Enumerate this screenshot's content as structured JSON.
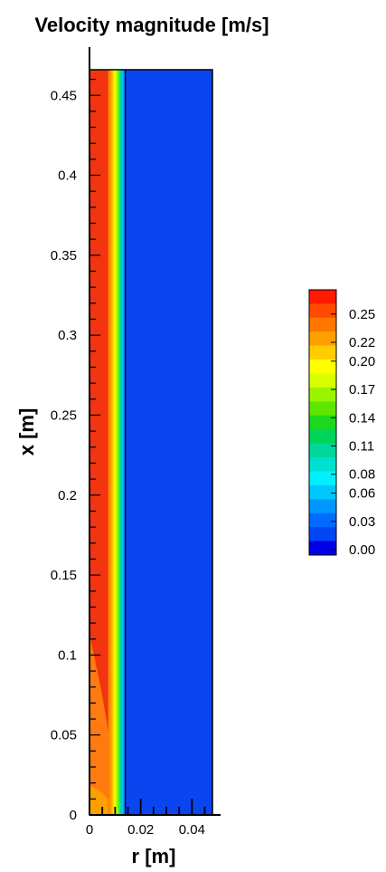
{
  "chart_data": {
    "type": "heatmap",
    "title": "Velocity magnitude [m/s]",
    "xlabel": "r [m]",
    "ylabel": "x [m]",
    "xlim": [
      0,
      0.048
    ],
    "ylim": [
      0,
      0.466
    ],
    "x_ticks": [
      "0",
      "0.02",
      "0.04"
    ],
    "x_tick_values": [
      0,
      0.02,
      0.04
    ],
    "y_ticks": [
      "0",
      "0.05",
      "0.1",
      "0.15",
      "0.2",
      "0.25",
      "0.3",
      "0.35",
      "0.4",
      "0.45"
    ],
    "y_tick_values": [
      0,
      0.05,
      0.1,
      0.15,
      0.2,
      0.25,
      0.3,
      0.35,
      0.4,
      0.45
    ],
    "colorbar": {
      "labels": [
        "0.25",
        "0.22",
        "0.20",
        "0.17",
        "0.14",
        "0.11",
        "0.08",
        "0.06",
        "0.03",
        "0.00"
      ],
      "label_values": [
        0.25,
        0.22,
        0.2,
        0.17,
        0.14,
        0.11,
        0.08,
        0.06,
        0.03,
        0.0
      ],
      "levels": [
        {
          "value": 0.27,
          "color": "#ff1a00"
        },
        {
          "value": 0.26,
          "color": "#ff4a00"
        },
        {
          "value": 0.245,
          "color": "#ff7700"
        },
        {
          "value": 0.23,
          "color": "#ffa000"
        },
        {
          "value": 0.215,
          "color": "#ffcc00"
        },
        {
          "value": 0.2,
          "color": "#ffff00"
        },
        {
          "value": 0.185,
          "color": "#d7ff00"
        },
        {
          "value": 0.17,
          "color": "#9cf500"
        },
        {
          "value": 0.155,
          "color": "#5ee600"
        },
        {
          "value": 0.14,
          "color": "#1ed81e"
        },
        {
          "value": 0.125,
          "color": "#00d45a"
        },
        {
          "value": 0.11,
          "color": "#00d89a"
        },
        {
          "value": 0.095,
          "color": "#00e0d0"
        },
        {
          "value": 0.08,
          "color": "#00f0ff"
        },
        {
          "value": 0.065,
          "color": "#00c8ff"
        },
        {
          "value": 0.05,
          "color": "#0096ff"
        },
        {
          "value": 0.035,
          "color": "#006cff"
        },
        {
          "value": 0.02,
          "color": "#0046f5"
        },
        {
          "value": 0.005,
          "color": "#0000e6"
        }
      ]
    },
    "field": {
      "jet_radius": 0.014,
      "core_value": 0.255,
      "inlet_core_value": 0.235,
      "ambient_value": 0.02
    },
    "colors": {
      "ambient": "#0a46f0",
      "core": "#f2340f",
      "core_inlet": "#ff7a10",
      "inlet_zone": "#ffa000"
    }
  }
}
